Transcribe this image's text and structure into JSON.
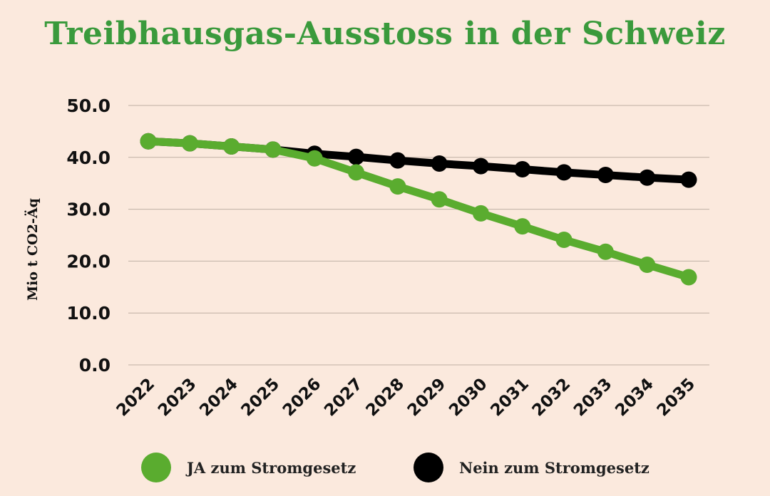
{
  "chart_data": {
    "type": "line",
    "title": "Treibhausgas-Ausstoss in der Schweiz",
    "xlabel": "",
    "ylabel": "Mio t CO2-Äq",
    "ylim": [
      0,
      50
    ],
    "yticks": [
      "0.0",
      "10.0",
      "20.0",
      "30.0",
      "40.0",
      "50.0"
    ],
    "grid": true,
    "legend_position": "bottom",
    "x": [
      "2022",
      "2023",
      "2024",
      "2025",
      "2026",
      "2027",
      "2028",
      "2029",
      "2030",
      "2031",
      "2032",
      "2033",
      "2034",
      "2035"
    ],
    "series": [
      {
        "name": "Nein zum Stromgesetz",
        "color": "#000000",
        "values": [
          43.1,
          42.7,
          42.1,
          41.5,
          40.7,
          40.1,
          39.4,
          38.8,
          38.3,
          37.7,
          37.1,
          36.6,
          36.1,
          35.7
        ]
      },
      {
        "name": "JA zum Stromgesetz",
        "color": "#5aac2f",
        "values": [
          43.1,
          42.7,
          42.1,
          41.5,
          39.8,
          37.1,
          34.4,
          31.9,
          29.2,
          26.7,
          24.1,
          21.8,
          19.3,
          16.9
        ]
      }
    ]
  },
  "legend": {
    "ja_label": "JA zum Stromgesetz",
    "nein_label": "Nein zum Stromgesetz"
  },
  "colors": {
    "background": "#fbe9dd",
    "title": "#3a9a3c",
    "ja": "#5aac2f",
    "nein": "#000000",
    "grid": "#bfb0a4"
  }
}
